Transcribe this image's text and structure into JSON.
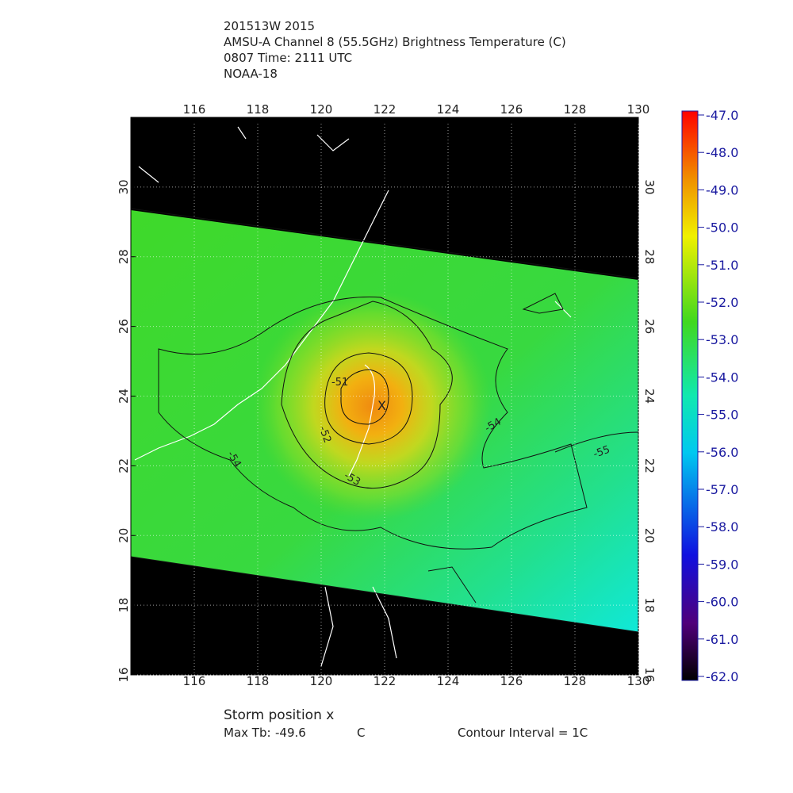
{
  "header": {
    "lines": [
      "201513W 2015",
      "AMSU-A Channel 8 (55.5GHz) Brightness Temperature (C)",
      "0807 Time: 2111 UTC",
      "NOAA-18"
    ]
  },
  "map": {
    "xlim": [
      114,
      130
    ],
    "ylim": [
      16,
      32
    ],
    "xticks": [
      116,
      118,
      120,
      122,
      124,
      126,
      128,
      130
    ],
    "yticks": [
      16,
      18,
      20,
      22,
      24,
      26,
      28,
      30
    ],
    "storm_marker": "X",
    "contour_labels": [
      "-51",
      "-52",
      "-53",
      "-54",
      "-54",
      "-55"
    ]
  },
  "colorbar": {
    "lim": [
      -62,
      -47
    ],
    "ticks": [
      {
        "value": -47,
        "label": "-47.0"
      },
      {
        "value": -48,
        "label": "-48.0"
      },
      {
        "value": -49,
        "label": "-49.0"
      },
      {
        "value": -50,
        "label": "-50.0"
      },
      {
        "value": -51,
        "label": "-51.0"
      },
      {
        "value": -52,
        "label": "-52.0"
      },
      {
        "value": -53,
        "label": "-53.0"
      },
      {
        "value": -54,
        "label": "-54.0"
      },
      {
        "value": -55,
        "label": "-55.0"
      },
      {
        "value": -56,
        "label": "-56.0"
      },
      {
        "value": -57,
        "label": "-57.0"
      },
      {
        "value": -58,
        "label": "-58.0"
      },
      {
        "value": -59,
        "label": "-59.0"
      },
      {
        "value": -60,
        "label": "-60.0"
      },
      {
        "value": -61,
        "label": "-61.0"
      },
      {
        "value": -62,
        "label": "-62.0"
      }
    ]
  },
  "footer": {
    "storm_position": "Storm position x",
    "max_tb_label": "Max Tb:",
    "max_tb_value": -49.6,
    "max_tb_unit": "C",
    "contour_interval": "Contour Interval = 1C"
  }
}
